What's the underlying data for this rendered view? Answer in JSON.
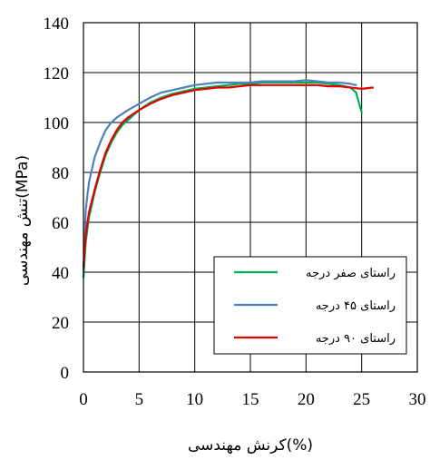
{
  "chart_data": {
    "type": "line",
    "title": "",
    "xlabel": "کرنش مهندسی(%)",
    "ylabel": "تنش مهندسی(MPa)",
    "xlim": [
      0,
      30
    ],
    "ylim": [
      0,
      140
    ],
    "xticks": [
      0,
      5,
      10,
      15,
      20,
      25,
      30
    ],
    "yticks": [
      0,
      20,
      40,
      60,
      80,
      100,
      120,
      140
    ],
    "grid": true,
    "legend_position": "lower-right",
    "series": [
      {
        "name": "راستای صفر درجه",
        "color": "#00b050",
        "x": [
          0,
          0.2,
          0.5,
          1,
          1.5,
          2,
          2.5,
          3,
          3.5,
          4,
          4.5,
          5,
          6,
          7,
          8,
          9,
          10,
          11,
          12,
          13,
          14,
          15,
          16,
          17,
          18,
          19,
          20,
          21,
          22,
          23,
          24,
          24.5,
          25
        ],
        "y": [
          38,
          52,
          62,
          72,
          80,
          87,
          92,
          96,
          99,
          101,
          103,
          105,
          108,
          110,
          111.5,
          112.5,
          113.5,
          114,
          114.5,
          115,
          115.5,
          115.5,
          116,
          116,
          116,
          116,
          116,
          116,
          115.5,
          115,
          114,
          112,
          104
        ]
      },
      {
        "name": "راستای ۴۵ درجه",
        "color": "#4f81bd",
        "x": [
          0,
          0.2,
          0.5,
          1,
          1.5,
          2,
          2.5,
          3,
          4,
          5,
          6,
          7,
          8,
          9,
          10,
          11,
          12,
          13,
          14,
          15,
          16,
          17,
          18,
          19,
          20,
          21,
          22,
          23,
          24,
          24.5
        ],
        "y": [
          40,
          65,
          76,
          86,
          92,
          97,
          100,
          102,
          105,
          107.5,
          110,
          112,
          113,
          114,
          115,
          115.5,
          116,
          116,
          116,
          116,
          116.5,
          116.5,
          116.5,
          116.5,
          117,
          116.5,
          116,
          116,
          115.5,
          115
        ]
      },
      {
        "name": "راستای ۹۰ درجه",
        "color": "#e00000",
        "x": [
          0,
          0.2,
          0.5,
          1,
          1.5,
          2,
          2.5,
          3,
          3.5,
          4,
          4.5,
          5,
          6,
          7,
          8,
          9,
          10,
          11,
          12,
          13,
          14,
          15,
          16,
          17,
          18,
          19,
          20,
          21,
          22,
          23,
          24,
          25,
          26
        ],
        "y": [
          42,
          55,
          64,
          73,
          81,
          88,
          93,
          97,
          100,
          102,
          103.5,
          105,
          107.5,
          109.5,
          111,
          112,
          113,
          113.5,
          114,
          114,
          114.5,
          115,
          115,
          115,
          115,
          115,
          115,
          115,
          114.5,
          114.5,
          114,
          113.5,
          114
        ]
      }
    ]
  }
}
